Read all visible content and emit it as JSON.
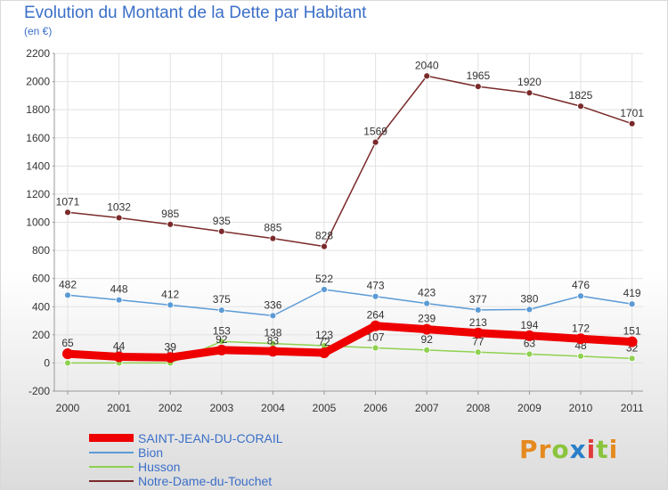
{
  "title": "Evolution du Montant de la Dette par Habitant",
  "subtitle": "(en €)",
  "logo": {
    "text": "Proxiti",
    "letter_colors": [
      "#e58a1e",
      "#e58a1e",
      "#8ac43c",
      "#2a7fc9",
      "#e23b3b",
      "#8ac43c",
      "#e58a1e"
    ]
  },
  "chart_data": {
    "type": "line",
    "categories": [
      "2000",
      "2001",
      "2002",
      "2003",
      "2004",
      "2005",
      "2006",
      "2007",
      "2008",
      "2009",
      "2010",
      "2011"
    ],
    "ylim": [
      -200,
      2200
    ],
    "yticks": [
      "-200",
      "0",
      "200",
      "400",
      "600",
      "800",
      "1000",
      "1200",
      "1400",
      "1600",
      "1800",
      "2000",
      "2200"
    ],
    "grid": true,
    "legend_position": "bottom-left",
    "series": [
      {
        "name": "SAINT-JEAN-DU-CORAIL",
        "color": "#ee0000",
        "values": [
          65,
          44,
          39,
          92,
          83,
          72,
          264,
          239,
          213,
          194,
          172,
          151
        ],
        "labels": [
          "65",
          "44",
          "39",
          "92",
          "83",
          "72",
          "264",
          "239",
          "213",
          "194",
          "172",
          "151"
        ]
      },
      {
        "name": "Bion",
        "color": "#5b9bd5",
        "values": [
          482,
          448,
          412,
          375,
          336,
          522,
          473,
          423,
          377,
          380,
          476,
          419
        ],
        "labels": [
          "482",
          "448",
          "412",
          "375",
          "336",
          "522",
          "473",
          "423",
          "377",
          "380",
          "476",
          "419"
        ]
      },
      {
        "name": "Husson",
        "color": "#8fd14f",
        "values": [
          0,
          0,
          0,
          153,
          138,
          123,
          107,
          92,
          77,
          63,
          48,
          32
        ],
        "labels": [
          "0",
          "0",
          "0",
          "153",
          "138",
          "123",
          "107",
          "92",
          "77",
          "63",
          "48",
          "32"
        ]
      },
      {
        "name": "Notre-Dame-du-Touchet",
        "color": "#7a2a2a",
        "values": [
          1071,
          1032,
          985,
          935,
          885,
          828,
          1569,
          2040,
          1965,
          1920,
          1825,
          1701
        ],
        "labels": [
          "1071",
          "1032",
          "985",
          "935",
          "885",
          "828",
          "1569",
          "2040",
          "1965",
          "1920",
          "1825",
          "1701"
        ]
      }
    ]
  }
}
